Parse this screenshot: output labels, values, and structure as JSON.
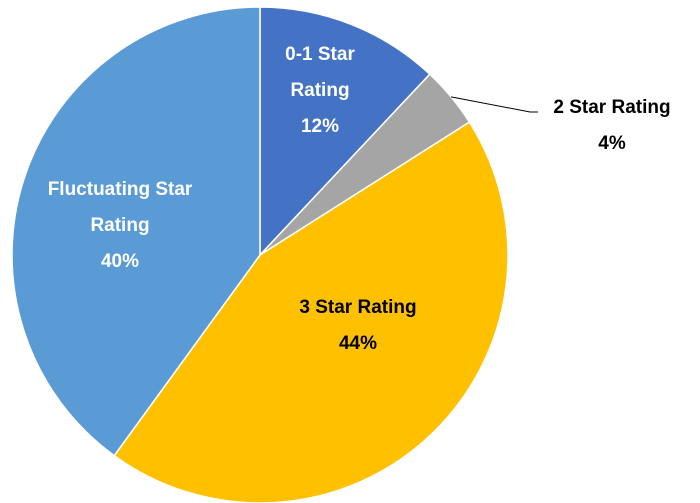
{
  "chart_data": {
    "type": "pie",
    "categories": [
      "0-1 Star Rating",
      "2 Star Rating",
      "3 Star Rating",
      "Fluctuating Star Rating"
    ],
    "values": [
      12,
      4,
      44,
      40
    ],
    "value_labels": [
      "12%",
      "4%",
      "44%",
      "40%"
    ],
    "colors": [
      "#4472c4",
      "#a5a5a5",
      "#ffc000",
      "#5b9bd5"
    ]
  }
}
